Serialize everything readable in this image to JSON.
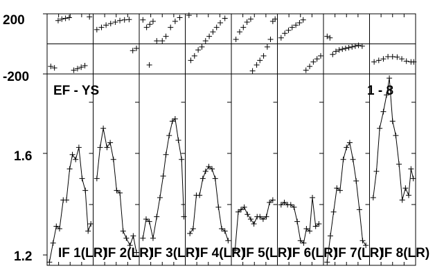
{
  "chart_data": {
    "type": "line",
    "markers": "plus",
    "grid": false,
    "title_left": "EF - YS",
    "title_right": "1 - 8",
    "phase_panel": {
      "yticks": [
        "200",
        "-200"
      ],
      "ylim": [
        -200,
        200
      ]
    },
    "amp_panel": {
      "yticks": [
        "1.6",
        "1.2"
      ],
      "ylim": [
        1.2,
        1.9
      ]
    },
    "series": [
      {
        "name": "IF 1(LR)",
        "phase": [
          [
            0.08,
            -150
          ],
          [
            0.16,
            -160
          ],
          [
            0.24,
            155
          ],
          [
            0.32,
            165
          ],
          [
            0.4,
            170
          ],
          [
            0.48,
            175
          ],
          [
            0.58,
            -175
          ],
          [
            0.66,
            -165
          ],
          [
            0.74,
            -155
          ],
          [
            0.82,
            -145
          ],
          [
            0.92,
            180
          ]
        ],
        "amp": [
          [
            0.05,
            1.17
          ],
          [
            0.13,
            1.25
          ],
          [
            0.2,
            1.32
          ],
          [
            0.27,
            1.31
          ],
          [
            0.35,
            1.43
          ],
          [
            0.42,
            1.43
          ],
          [
            0.49,
            1.56
          ],
          [
            0.55,
            1.62
          ],
          [
            0.62,
            1.6
          ],
          [
            0.69,
            1.65
          ],
          [
            0.76,
            1.52
          ],
          [
            0.83,
            1.47
          ],
          [
            0.89,
            1.3
          ],
          [
            0.95,
            1.33
          ]
        ]
      },
      {
        "name": "IF 2(LR)",
        "phase": [
          [
            0.08,
            95
          ],
          [
            0.18,
            110
          ],
          [
            0.28,
            125
          ],
          [
            0.38,
            135
          ],
          [
            0.48,
            145
          ],
          [
            0.58,
            155
          ],
          [
            0.68,
            160
          ],
          [
            0.78,
            162
          ],
          [
            0.86,
            -45
          ],
          [
            0.94,
            -30
          ]
        ],
        "amp": [
          [
            0.08,
            1.52
          ],
          [
            0.15,
            1.65
          ],
          [
            0.22,
            1.73
          ],
          [
            0.3,
            1.65
          ],
          [
            0.37,
            1.67
          ],
          [
            0.44,
            1.6
          ],
          [
            0.51,
            1.47
          ],
          [
            0.58,
            1.46
          ],
          [
            0.65,
            1.3
          ],
          [
            0.72,
            1.27
          ],
          [
            0.8,
            1.24
          ],
          [
            0.87,
            1.28
          ],
          [
            0.94,
            1.21
          ]
        ]
      },
      {
        "name": "IF 3(LR)",
        "phase": [
          [
            0.08,
            160
          ],
          [
            0.16,
            110
          ],
          [
            0.23,
            130
          ],
          [
            0.3,
            150
          ],
          [
            0.22,
            -140
          ],
          [
            0.38,
            20
          ],
          [
            0.5,
            20
          ],
          [
            0.58,
            50
          ],
          [
            0.68,
            110
          ],
          [
            0.78,
            150
          ],
          [
            0.88,
            175
          ]
        ],
        "amp": [
          [
            0.08,
            1.27
          ],
          [
            0.15,
            1.35
          ],
          [
            0.22,
            1.34
          ],
          [
            0.3,
            1.27
          ],
          [
            0.38,
            1.36
          ],
          [
            0.45,
            1.44
          ],
          [
            0.52,
            1.53
          ],
          [
            0.58,
            1.62
          ],
          [
            0.65,
            1.7
          ],
          [
            0.72,
            1.76
          ],
          [
            0.78,
            1.77
          ],
          [
            0.85,
            1.68
          ],
          [
            0.92,
            1.6
          ],
          [
            0.97,
            1.36
          ]
        ]
      },
      {
        "name": "IF 4(LR)",
        "phase": [
          [
            0.08,
            190
          ],
          [
            0.12,
            -110
          ],
          [
            0.2,
            -80
          ],
          [
            0.28,
            -40
          ],
          [
            0.36,
            -20
          ],
          [
            0.44,
            20
          ],
          [
            0.52,
            50
          ],
          [
            0.6,
            80
          ],
          [
            0.68,
            110
          ],
          [
            0.76,
            140
          ],
          [
            0.86,
            170
          ]
        ],
        "amp": [
          [
            0.1,
            1.29
          ],
          [
            0.17,
            1.31
          ],
          [
            0.24,
            1.45
          ],
          [
            0.31,
            1.45
          ],
          [
            0.38,
            1.52
          ],
          [
            0.44,
            1.55
          ],
          [
            0.51,
            1.57
          ],
          [
            0.58,
            1.56
          ],
          [
            0.65,
            1.52
          ],
          [
            0.72,
            1.4
          ],
          [
            0.79,
            1.31
          ],
          [
            0.86,
            1.3
          ],
          [
            0.93,
            1.26
          ]
        ]
      },
      {
        "name": "IF 5(LR)",
        "phase": [
          [
            0.1,
            30
          ],
          [
            0.18,
            80
          ],
          [
            0.26,
            110
          ],
          [
            0.34,
            145
          ],
          [
            0.42,
            165
          ],
          [
            0.46,
            -180
          ],
          [
            0.55,
            -140
          ],
          [
            0.62,
            -110
          ],
          [
            0.7,
            -80
          ],
          [
            0.78,
            -20
          ],
          [
            0.85,
            30
          ],
          [
            0.9,
            150
          ],
          [
            0.95,
            165
          ]
        ],
        "amp": [
          [
            0.08,
            1.22
          ],
          [
            0.15,
            1.38
          ],
          [
            0.21,
            1.39
          ],
          [
            0.28,
            1.4
          ],
          [
            0.35,
            1.37
          ],
          [
            0.42,
            1.35
          ],
          [
            0.49,
            1.33
          ],
          [
            0.56,
            1.36
          ],
          [
            0.62,
            1.36
          ],
          [
            0.69,
            1.35
          ],
          [
            0.76,
            1.36
          ],
          [
            0.83,
            1.42
          ],
          [
            0.9,
            1.43
          ]
        ]
      },
      {
        "name": "IF 6(LR)",
        "phase": [
          [
            0.08,
            40
          ],
          [
            0.16,
            70
          ],
          [
            0.24,
            90
          ],
          [
            0.32,
            110
          ],
          [
            0.4,
            125
          ],
          [
            0.48,
            140
          ],
          [
            0.56,
            160
          ],
          [
            0.62,
            -175
          ],
          [
            0.7,
            -150
          ],
          [
            0.78,
            -120
          ],
          [
            0.86,
            -100
          ],
          [
            0.94,
            -80
          ]
        ],
        "amp": [
          [
            0.08,
            1.41
          ],
          [
            0.15,
            1.42
          ],
          [
            0.22,
            1.41
          ],
          [
            0.29,
            1.41
          ],
          [
            0.36,
            1.4
          ],
          [
            0.43,
            1.34
          ],
          [
            0.5,
            1.26
          ],
          [
            0.57,
            1.25
          ],
          [
            0.63,
            1.31
          ],
          [
            0.7,
            1.3
          ],
          [
            0.76,
            1.44
          ],
          [
            0.83,
            1.32
          ],
          [
            0.9,
            1.33
          ]
        ]
      },
      {
        "name": "IF 7(LR)",
        "phase": [
          [
            0.08,
            50
          ],
          [
            0.14,
            40
          ],
          [
            0.2,
            -70
          ],
          [
            0.27,
            -50
          ],
          [
            0.34,
            -40
          ],
          [
            0.41,
            -35
          ],
          [
            0.48,
            -30
          ],
          [
            0.55,
            -25
          ],
          [
            0.62,
            -20
          ],
          [
            0.69,
            -15
          ],
          [
            0.76,
            -10
          ],
          [
            0.84,
            -15
          ]
        ],
        "amp": [
          [
            0.08,
            1.17
          ],
          [
            0.15,
            1.28
          ],
          [
            0.22,
            1.38
          ],
          [
            0.29,
            1.48
          ],
          [
            0.36,
            1.47
          ],
          [
            0.43,
            1.6
          ],
          [
            0.5,
            1.65
          ],
          [
            0.57,
            1.67
          ],
          [
            0.64,
            1.6
          ],
          [
            0.71,
            1.51
          ],
          [
            0.78,
            1.39
          ],
          [
            0.85,
            1.26
          ],
          [
            0.92,
            1.24
          ]
        ]
      },
      {
        "name": "IF 8(LR)",
        "phase": [
          [
            0.1,
            -120
          ],
          [
            0.2,
            -110
          ],
          [
            0.3,
            -100
          ],
          [
            0.4,
            -85
          ],
          [
            0.5,
            -85
          ],
          [
            0.6,
            -88
          ],
          [
            0.7,
            -100
          ],
          [
            0.8,
            -115
          ],
          [
            0.9,
            -120
          ],
          [
            0.96,
            -120
          ]
        ],
        "amp": [
          [
            0.08,
            1.44
          ],
          [
            0.15,
            1.55
          ],
          [
            0.22,
            1.73
          ],
          [
            0.3,
            1.8
          ],
          [
            0.37,
            1.87
          ],
          [
            0.43,
            1.94
          ],
          [
            0.5,
            1.76
          ],
          [
            0.57,
            1.7
          ],
          [
            0.64,
            1.58
          ],
          [
            0.71,
            1.43
          ],
          [
            0.78,
            1.48
          ],
          [
            0.85,
            1.45
          ],
          [
            0.9,
            1.56
          ],
          [
            0.95,
            1.52
          ]
        ]
      }
    ]
  }
}
